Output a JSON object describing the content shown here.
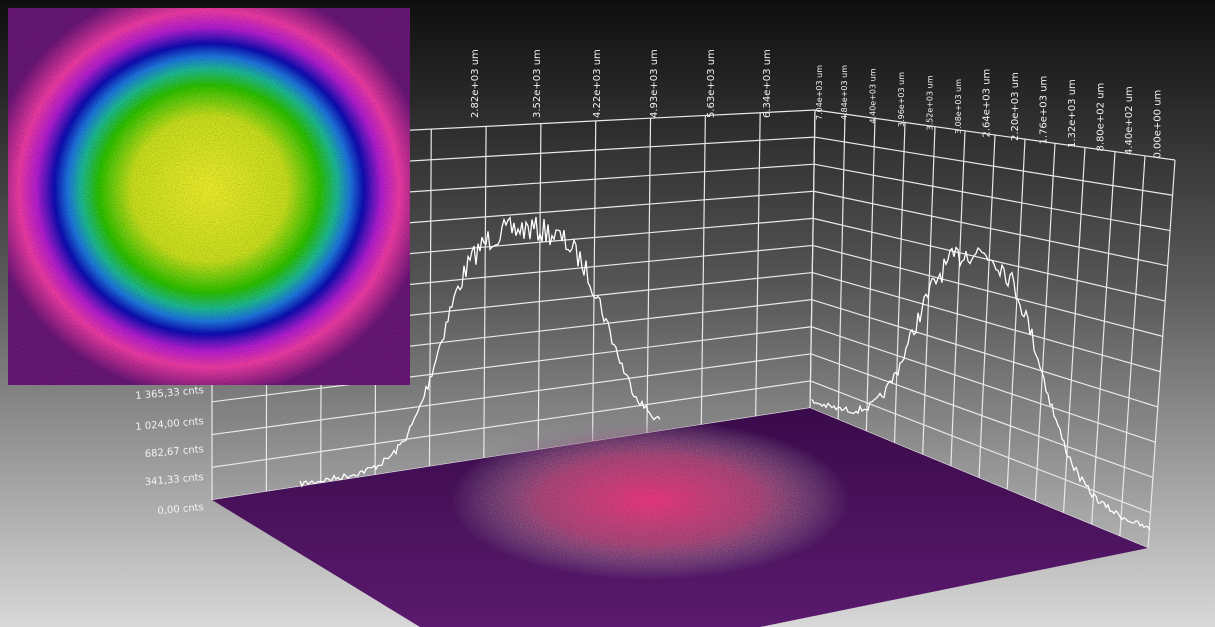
{
  "z_axis": {
    "labels": [
      "1 365,33 cnts",
      "1 024,00 cnts",
      "682,67 cnts",
      "341,33 cnts",
      "0,00 cnts"
    ]
  },
  "x_axis": {
    "labels": [
      "2.82e+03 um",
      "3.52e+03 um",
      "4.22e+03 um",
      "4.93e+03 um",
      "5.63e+03 um",
      "6.34e+03 um",
      "7.04e+03 um"
    ]
  },
  "y_axis": {
    "labels": [
      "4.84e+03 um",
      "4.40e+03 um",
      "3.96e+03 um",
      "3.52e+03 um",
      "3.08e+03 um",
      "2.64e+03 um",
      "2.20e+03 um",
      "1.76e+03 um",
      "1.32e+03 um",
      "8.80e+02 um",
      "4.40e+02 um",
      "0.00e+00 um"
    ]
  }
}
